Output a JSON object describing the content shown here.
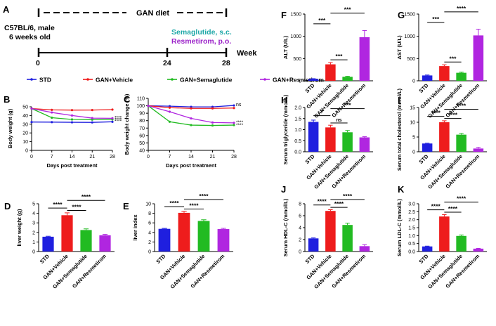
{
  "colors": {
    "std": "#1f1fdf",
    "vehicle": "#ee1c1c",
    "sema": "#22bb22",
    "resm": "#b026e0",
    "teal": "#20a8a8",
    "purple": "#9b22c8"
  },
  "panelA": {
    "letter": "A",
    "diet": "GAN diet",
    "mouse1": "C57BL/6, male",
    "mouse2": "6 weeks old",
    "drug1": "Semaglutide, s.c.",
    "drug2": "Resmetirom, p.o.",
    "week_label": "Week",
    "ticks": [
      "0",
      "24",
      "28"
    ]
  },
  "legend": [
    {
      "key": "std",
      "label": "STD"
    },
    {
      "key": "vehicle",
      "label": "GAN+Vehicle"
    },
    {
      "key": "sema",
      "label": "GAN+Semaglutide"
    },
    {
      "key": "resm",
      "label": "GAN+Resmetirom"
    }
  ],
  "chart_data": [
    {
      "id": "B",
      "type": "line",
      "letter": "B",
      "xlabel": "Days post treatment",
      "ylabel": "Body weight (g)",
      "x": [
        0,
        7,
        14,
        21,
        28
      ],
      "xlim": [
        0,
        28
      ],
      "ylim": [
        0,
        50
      ],
      "yticks": [
        0,
        10,
        20,
        30,
        40,
        50
      ],
      "series": [
        {
          "key": "std",
          "values": [
            32.5,
            32.4,
            32.2,
            32.1,
            32.8
          ]
        },
        {
          "key": "vehicle",
          "values": [
            48,
            46.5,
            46.2,
            46.3,
            46.8
          ]
        },
        {
          "key": "sema",
          "values": [
            48,
            37.5,
            35.5,
            35.3,
            35.5
          ]
        },
        {
          "key": "resm",
          "values": [
            48,
            43.5,
            40,
            37,
            36.8
          ]
        }
      ],
      "annotations": [
        "****",
        "****",
        "****"
      ]
    },
    {
      "id": "C",
      "type": "line",
      "letter": "C",
      "xlabel": "Days post treatment",
      "ylabel": "Body weight change (%)",
      "x": [
        0,
        7,
        14,
        21,
        28
      ],
      "xlim": [
        0,
        28
      ],
      "ylim": [
        40,
        110
      ],
      "yticks": [
        40,
        50,
        60,
        70,
        80,
        90,
        100,
        110
      ],
      "series": [
        {
          "key": "std",
          "values": [
            100,
            99.5,
            98.5,
            98.5,
            100.5
          ]
        },
        {
          "key": "vehicle",
          "values": [
            100,
            97.5,
            96.5,
            96.5,
            97
          ]
        },
        {
          "key": "sema",
          "values": [
            100,
            78.5,
            74,
            73.5,
            74
          ]
        },
        {
          "key": "resm",
          "values": [
            100,
            92,
            83,
            77.5,
            77
          ]
        }
      ],
      "annotations": [
        "ns",
        "****",
        "****"
      ]
    },
    {
      "id": "D",
      "type": "bar",
      "letter": "D",
      "ylabel": "liver weight (g)",
      "ylim": [
        0,
        5
      ],
      "yticks": [
        0,
        1,
        2,
        3,
        4,
        5
      ],
      "categories": [
        "STD",
        "GAN+Vehicle",
        "GAN+Semaglutide",
        "GAN+Resmetirom"
      ],
      "values": [
        1.55,
        3.8,
        2.25,
        1.7
      ],
      "errors": [
        0.05,
        0.25,
        0.12,
        0.1
      ],
      "sig": [
        {
          "a": 0,
          "b": 1,
          "t": "****"
        },
        {
          "a": 1,
          "b": 2,
          "t": "****"
        },
        {
          "a": 1,
          "b": 3,
          "t": "****"
        }
      ]
    },
    {
      "id": "E",
      "type": "bar",
      "letter": "E",
      "ylabel": "liver index",
      "ylim": [
        0,
        10
      ],
      "yticks": [
        0,
        2,
        4,
        6,
        8,
        10
      ],
      "categories": [
        "STD",
        "GAN+Vehicle",
        "GAN+Semaglutide",
        "GAN+Resmetirom"
      ],
      "values": [
        4.75,
        8.1,
        6.4,
        4.7
      ],
      "errors": [
        0.1,
        0.3,
        0.25,
        0.15
      ],
      "sig": [
        {
          "a": 0,
          "b": 1,
          "t": "****"
        },
        {
          "a": 1,
          "b": 2,
          "t": "****"
        },
        {
          "a": 1,
          "b": 3,
          "t": "****"
        }
      ]
    },
    {
      "id": "F",
      "type": "bar",
      "letter": "F",
      "ylabel": "ALT (U/L)",
      "ylim": [
        0,
        1500
      ],
      "yticks": [
        0,
        500,
        1000,
        1500
      ],
      "categories": [
        "STD",
        "GAN+Vehicle",
        "GAN+Semaglutide",
        "GAN+Resmetirom"
      ],
      "values": [
        40,
        370,
        90,
        980
      ],
      "errors": [
        8,
        40,
        12,
        150
      ],
      "sig": [
        {
          "a": 0,
          "b": 1,
          "t": "***"
        },
        {
          "a": 1,
          "b": 2,
          "t": "***"
        },
        {
          "a": 1,
          "b": 3,
          "t": "***"
        }
      ]
    },
    {
      "id": "G",
      "type": "bar",
      "letter": "G",
      "ylabel": "AST (U/L)",
      "ylim": [
        0,
        1500
      ],
      "yticks": [
        0,
        500,
        1000,
        1500
      ],
      "categories": [
        "STD",
        "GAN+Vehicle",
        "GAN+Semaglutide",
        "GAN+Resmetirom"
      ],
      "values": [
        120,
        330,
        180,
        1020
      ],
      "errors": [
        10,
        30,
        15,
        140
      ],
      "sig": [
        {
          "a": 0,
          "b": 1,
          "t": "***"
        },
        {
          "a": 1,
          "b": 2,
          "t": "***"
        },
        {
          "a": 1,
          "b": 3,
          "t": "****"
        }
      ]
    },
    {
      "id": "H",
      "type": "bar",
      "letter": "H",
      "ylabel": "Serum triglyceride (mmol/L)",
      "ylim": [
        0,
        2.0
      ],
      "yticks": [
        0.0,
        0.5,
        1.0,
        1.5,
        2.0
      ],
      "categories": [
        "STD",
        "GAN+Vehicle",
        "GAN+Semaglutide",
        "GAN+Resmetirom"
      ],
      "values": [
        1.35,
        1.1,
        0.88,
        0.65
      ],
      "errors": [
        0.08,
        0.1,
        0.08,
        0.03
      ],
      "sig": [
        {
          "a": 0,
          "b": 1,
          "t": "*"
        },
        {
          "a": 1,
          "b": 2,
          "t": "ns"
        },
        {
          "a": 1,
          "b": 3,
          "t": "***"
        }
      ]
    },
    {
      "id": "I",
      "type": "bar",
      "letter": "I",
      "ylabel": "Serum total cholesterol (mmol/L)",
      "ylim": [
        0,
        15
      ],
      "yticks": [
        0,
        5,
        10,
        15
      ],
      "categories": [
        "STD",
        "GAN+Vehicle",
        "GAN+Semaglutide",
        "GAN+Resmetirom"
      ],
      "values": [
        2.8,
        10,
        5.8,
        1.1
      ],
      "errors": [
        0.1,
        0.5,
        0.4,
        0.4
      ],
      "sig": [
        {
          "a": 0,
          "b": 1,
          "t": "****"
        },
        {
          "a": 1,
          "b": 2,
          "t": "****"
        },
        {
          "a": 1,
          "b": 3,
          "t": "****"
        }
      ]
    },
    {
      "id": "J",
      "type": "bar",
      "letter": "J",
      "ylabel": "Serum HDL-C (mmol/L)",
      "ylim": [
        0,
        8
      ],
      "yticks": [
        0,
        2,
        4,
        6,
        8
      ],
      "categories": [
        "STD",
        "GAN+Vehicle",
        "GAN+Semaglutide",
        "GAN+Resmetirom"
      ],
      "values": [
        2.2,
        6.8,
        4.45,
        0.9
      ],
      "errors": [
        0.08,
        0.2,
        0.3,
        0.25
      ],
      "sig": [
        {
          "a": 0,
          "b": 1,
          "t": "****"
        },
        {
          "a": 1,
          "b": 2,
          "t": "****"
        },
        {
          "a": 1,
          "b": 3,
          "t": "****"
        }
      ]
    },
    {
      "id": "K",
      "type": "bar",
      "letter": "K",
      "ylabel": "Serum LDL-C (mmol/L)",
      "ylim": [
        0,
        3.0
      ],
      "yticks": [
        0.0,
        0.5,
        1.0,
        1.5,
        2.0,
        2.5,
        3.0
      ],
      "categories": [
        "STD",
        "GAN+Vehicle",
        "GAN+Semaglutide",
        "GAN+Resmetirom"
      ],
      "values": [
        0.32,
        2.2,
        0.98,
        0.18
      ],
      "errors": [
        0.02,
        0.12,
        0.06,
        0.02
      ],
      "sig": [
        {
          "a": 0,
          "b": 1,
          "t": "****"
        },
        {
          "a": 1,
          "b": 2,
          "t": "****"
        },
        {
          "a": 1,
          "b": 3,
          "t": "****"
        }
      ]
    }
  ]
}
